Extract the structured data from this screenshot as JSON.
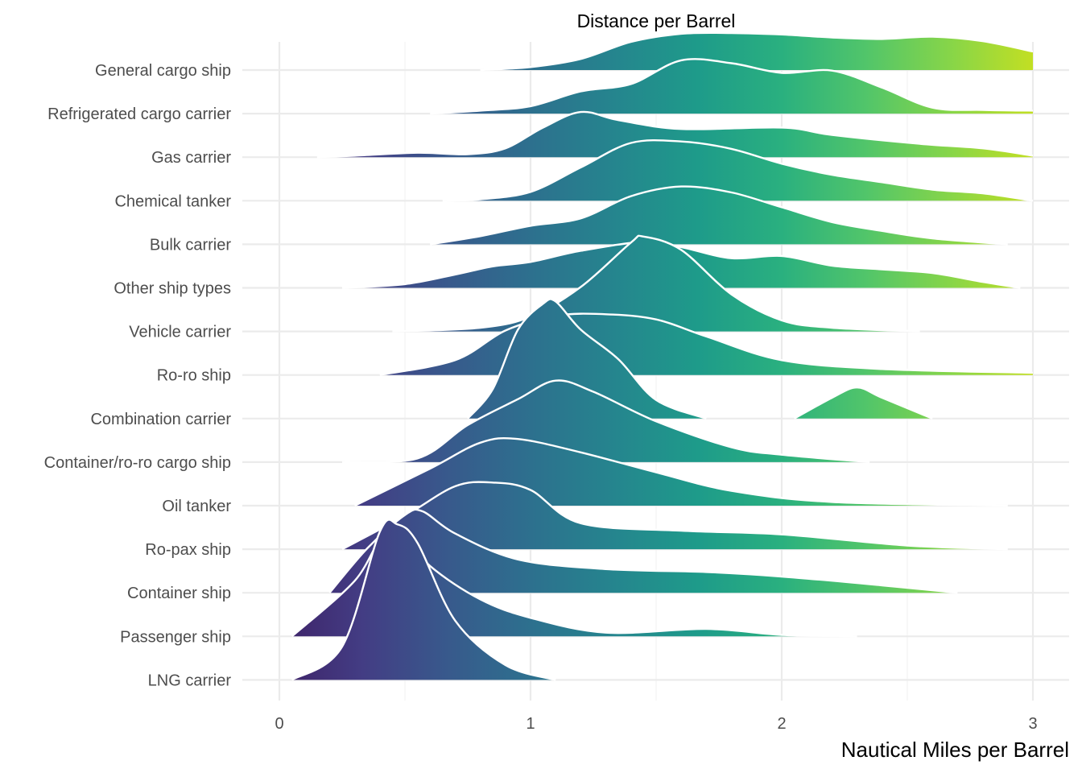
{
  "chart_data": {
    "type": "area",
    "subtype": "ridgeline-density",
    "title": "Distance per Barrel",
    "xlabel": "Nautical Miles per Barrel",
    "ylabel": "",
    "xlim": [
      -0.15,
      3.15
    ],
    "x_ticks": [
      "0",
      "1",
      "2",
      "3"
    ],
    "grid": true,
    "fill": "viridis gradient along x",
    "gradient_colors": [
      "#3e2268",
      "#433d84",
      "#38598c",
      "#2d708e",
      "#25858e",
      "#1e9b8a",
      "#2ab07f",
      "#51c56a",
      "#86d549",
      "#c2df23"
    ],
    "categories": [
      "General cargo ship",
      "Refrigerated cargo carrier",
      "Gas carrier",
      "Chemical tanker",
      "Bulk carrier",
      "Other ship types",
      "Vehicle carrier",
      "Ro-ro ship",
      "Combination carrier",
      "Container/ro-ro cargo ship",
      "Oil tanker",
      "Ro-pax ship",
      "Container ship",
      "Passenger ship",
      "LNG carrier"
    ],
    "series": [
      {
        "category": "General cargo ship",
        "x": [
          0.8,
          1.0,
          1.2,
          1.4,
          1.6,
          1.8,
          2.0,
          2.2,
          2.4,
          2.6,
          2.8,
          3.0
        ],
        "density": [
          0.0,
          0.04,
          0.15,
          0.38,
          0.49,
          0.5,
          0.48,
          0.44,
          0.42,
          0.45,
          0.39,
          0.25
        ]
      },
      {
        "category": "Refrigerated cargo carrier",
        "x": [
          0.6,
          0.8,
          1.0,
          1.2,
          1.4,
          1.6,
          1.8,
          2.0,
          2.2,
          2.4,
          2.6,
          2.8,
          3.0
        ],
        "density": [
          0.0,
          0.04,
          0.1,
          0.3,
          0.4,
          0.72,
          0.68,
          0.55,
          0.58,
          0.35,
          0.08,
          0.05,
          0.04
        ]
      },
      {
        "category": "Gas carrier",
        "x": [
          0.15,
          0.3,
          0.55,
          0.75,
          0.9,
          1.05,
          1.2,
          1.35,
          1.6,
          2.0,
          2.2,
          2.55,
          2.8,
          3.0
        ],
        "density": [
          0.0,
          0.02,
          0.06,
          0.04,
          0.12,
          0.4,
          0.61,
          0.5,
          0.38,
          0.4,
          0.3,
          0.18,
          0.12,
          0.02
        ]
      },
      {
        "category": "Chemical tanker",
        "x": [
          0.65,
          0.8,
          1.0,
          1.2,
          1.4,
          1.6,
          1.8,
          2.0,
          2.2,
          2.4,
          2.6,
          2.8,
          3.0
        ],
        "density": [
          0.0,
          0.02,
          0.12,
          0.45,
          0.78,
          0.8,
          0.7,
          0.5,
          0.35,
          0.25,
          0.15,
          0.1,
          0.0
        ]
      },
      {
        "category": "Bulk carrier",
        "x": [
          0.6,
          0.8,
          1.0,
          1.2,
          1.4,
          1.6,
          1.8,
          2.0,
          2.2,
          2.4,
          2.6,
          2.9
        ],
        "density": [
          0.0,
          0.11,
          0.25,
          0.35,
          0.65,
          0.78,
          0.7,
          0.5,
          0.3,
          0.18,
          0.08,
          0.0
        ]
      },
      {
        "category": "Other ship types",
        "x": [
          0.25,
          0.5,
          0.7,
          0.85,
          1.0,
          1.2,
          1.45,
          1.6,
          1.8,
          2.0,
          2.2,
          2.4,
          2.6,
          2.8,
          2.95
        ],
        "density": [
          0.0,
          0.05,
          0.18,
          0.29,
          0.35,
          0.5,
          0.62,
          0.55,
          0.4,
          0.43,
          0.3,
          0.25,
          0.2,
          0.08,
          0.0
        ]
      },
      {
        "category": "Vehicle carrier",
        "x": [
          0.45,
          0.8,
          1.0,
          1.2,
          1.4,
          1.45,
          1.6,
          1.8,
          2.0,
          2.2,
          2.55
        ],
        "density": [
          0.0,
          0.05,
          0.2,
          0.6,
          1.2,
          1.28,
          1.1,
          0.5,
          0.15,
          0.05,
          0.0
        ]
      },
      {
        "category": "Ro-ro ship",
        "x": [
          0.4,
          0.7,
          0.9,
          1.1,
          1.3,
          1.5,
          1.7,
          2.0,
          2.4,
          3.0
        ],
        "density": [
          0.0,
          0.2,
          0.6,
          0.8,
          0.82,
          0.75,
          0.52,
          0.2,
          0.08,
          0.03
        ]
      },
      {
        "category": "Combination carrier",
        "x": [
          0.75,
          0.85,
          0.95,
          1.05,
          1.1,
          1.2,
          1.35,
          1.5,
          1.7
        ],
        "density": [
          0.0,
          0.4,
          1.2,
          1.55,
          1.58,
          1.2,
          0.8,
          0.25,
          0.0
        ]
      },
      {
        "category": "Combination carrier (secondary mode)",
        "x": [
          2.05,
          2.2,
          2.3,
          2.4,
          2.6
        ],
        "density": [
          0.0,
          0.28,
          0.42,
          0.28,
          0.0
        ]
      },
      {
        "category": "Container/ro-ro cargo ship",
        "x": [
          0.25,
          0.55,
          0.75,
          0.95,
          1.1,
          1.25,
          1.5,
          1.8,
          2.0,
          2.35
        ],
        "density": [
          0.0,
          0.05,
          0.5,
          0.85,
          1.1,
          0.95,
          0.55,
          0.2,
          0.1,
          0.0
        ]
      },
      {
        "category": "Oil tanker",
        "x": [
          0.3,
          0.6,
          0.8,
          0.95,
          1.2,
          1.5,
          1.8,
          2.2,
          2.9
        ],
        "density": [
          0.0,
          0.5,
          0.85,
          0.9,
          0.72,
          0.45,
          0.2,
          0.05,
          0.0
        ]
      },
      {
        "category": "Ro-pax ship",
        "x": [
          0.25,
          0.5,
          0.7,
          0.85,
          1.0,
          1.2,
          1.6,
          2.0,
          2.5,
          2.9
        ],
        "density": [
          0.0,
          0.45,
          0.85,
          0.9,
          0.8,
          0.35,
          0.25,
          0.2,
          0.05,
          0.0
        ]
      },
      {
        "category": "Container ship",
        "x": [
          0.2,
          0.35,
          0.5,
          0.57,
          0.7,
          0.95,
          1.3,
          1.7,
          2.0,
          2.4,
          2.7
        ],
        "density": [
          0.0,
          0.6,
          1.05,
          1.1,
          0.8,
          0.45,
          0.32,
          0.28,
          0.22,
          0.1,
          0.0
        ]
      },
      {
        "category": "Passenger ship",
        "x": [
          0.05,
          0.3,
          0.45,
          0.6,
          0.8,
          1.0,
          1.3,
          1.7,
          2.0,
          2.3
        ],
        "density": [
          0.0,
          0.75,
          1.5,
          0.95,
          0.5,
          0.25,
          0.05,
          0.1,
          0.02,
          0.0
        ]
      },
      {
        "category": "LNG carrier",
        "x": [
          0.05,
          0.25,
          0.4,
          0.47,
          0.55,
          0.7,
          0.9,
          1.1
        ],
        "density": [
          0.0,
          0.45,
          2.0,
          2.1,
          1.85,
          0.8,
          0.2,
          0.0
        ]
      }
    ]
  }
}
